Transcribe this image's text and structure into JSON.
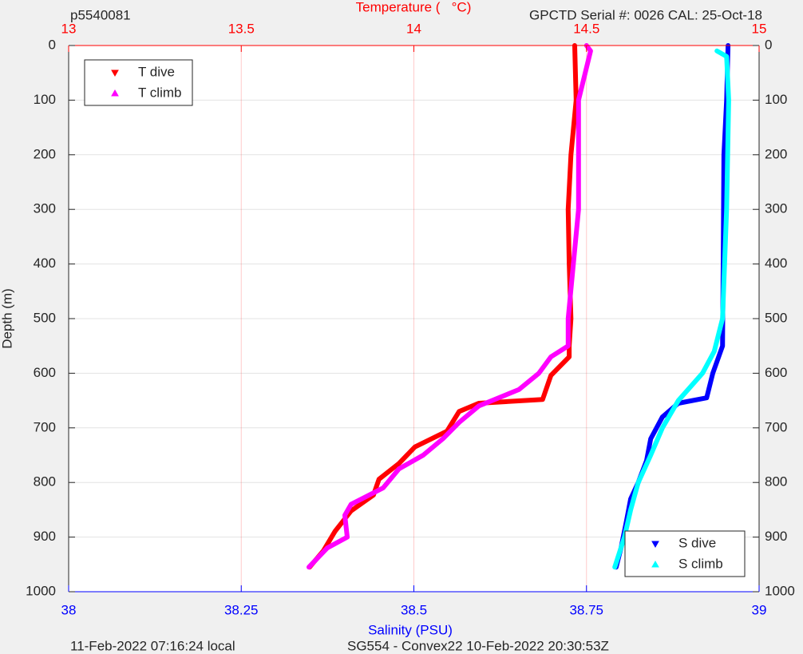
{
  "chart_data": {
    "type": "line",
    "title": "Temperature (   °C)",
    "title_left": "p5540081",
    "title_right": "GPCTD Serial #: 0026 CAL: 25-Oct-18",
    "xlabel": "Salinity (PSU)",
    "ylabel": "Depth (m)",
    "footer_left": "11-Feb-2022 07:16:24 local",
    "footer_right": "SG554 - Convex22 10-Feb-2022 20:30:53Z",
    "xlim": [
      38,
      39
    ],
    "xticks": [
      38,
      38.25,
      38.5,
      38.75,
      39
    ],
    "x_color": "#0000ff",
    "x2lim": [
      13,
      15
    ],
    "x2ticks": [
      13,
      13.5,
      14,
      14.5,
      15
    ],
    "x2_color": "#ff0000",
    "ylim": [
      0,
      1000
    ],
    "yticks": [
      0,
      100,
      200,
      300,
      400,
      500,
      600,
      700,
      800,
      900,
      1000
    ],
    "y_reversed": true,
    "grid": true,
    "x2_legend_loc": "upper left",
    "legend_loc": "lower right",
    "series": [
      {
        "name": "T dive",
        "color": "#ff0000",
        "marker": "v",
        "axis": "x2",
        "x": [
          14.466,
          14.47,
          14.455,
          14.447,
          14.45,
          14.455,
          14.45,
          14.45,
          14.397,
          14.373,
          14.188,
          14.131,
          14.096,
          14.003,
          13.957,
          13.899,
          13.883,
          13.818,
          13.772,
          13.738,
          13.698
        ],
        "y": [
          0,
          100,
          200,
          300,
          400,
          500,
          550,
          570,
          604,
          648,
          655,
          670,
          706,
          735,
          765,
          794,
          823,
          852,
          889,
          925,
          955
        ]
      },
      {
        "name": "T climb",
        "color": "#ff00ff",
        "marker": "^",
        "axis": "x2",
        "x": [
          14.5,
          14.512,
          14.477,
          14.477,
          14.477,
          14.447,
          14.447,
          14.397,
          14.362,
          14.304,
          14.188,
          14.131,
          14.084,
          14.027,
          13.957,
          13.911,
          13.818,
          13.8,
          13.807,
          13.749,
          13.696
        ],
        "y": [
          0,
          10,
          100,
          200,
          300,
          500,
          550,
          570,
          600,
          630,
          660,
          690,
          720,
          750,
          775,
          810,
          840,
          860,
          900,
          920,
          955
        ]
      },
      {
        "name": "S dive",
        "color": "#0000ff",
        "marker": "v",
        "x": [
          38.955,
          38.953,
          38.949,
          38.948,
          38.947,
          38.933,
          38.924,
          38.883,
          38.86,
          38.843,
          38.837,
          38.825,
          38.814,
          38.808,
          38.8,
          38.793
        ],
        "y": [
          0,
          100,
          200,
          400,
          550,
          600,
          645,
          655,
          680,
          720,
          760,
          800,
          830,
          870,
          920,
          955
        ]
      },
      {
        "name": "S climb",
        "color": "#00ffff",
        "marker": "^",
        "x": [
          38.939,
          38.953,
          38.956,
          38.953,
          38.947,
          38.935,
          38.918,
          38.883,
          38.86,
          38.843,
          38.825,
          38.814,
          38.805,
          38.791
        ],
        "y": [
          10,
          20,
          100,
          300,
          500,
          560,
          600,
          650,
          700,
          750,
          800,
          850,
          900,
          955
        ]
      }
    ]
  }
}
